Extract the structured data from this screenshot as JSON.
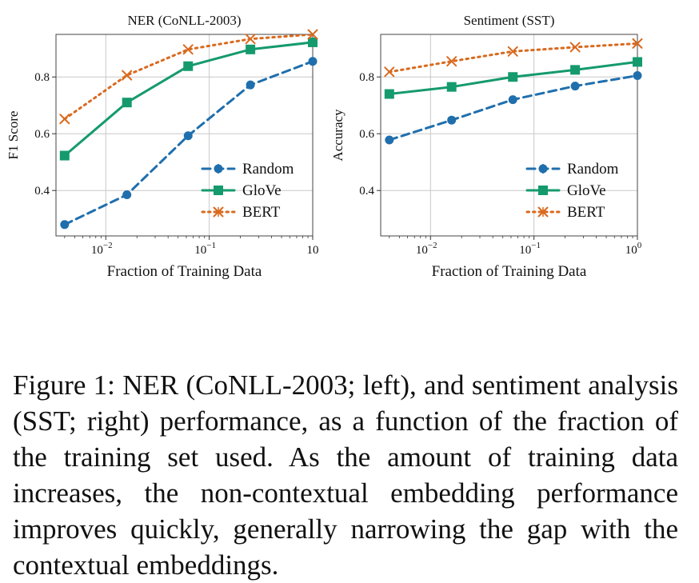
{
  "chart_data": [
    {
      "type": "line",
      "title": "NER (CoNLL-2003)",
      "xlabel": "Fraction of Training Data",
      "ylabel": "F1 Score",
      "x_scale": "log",
      "x": [
        0.004,
        0.016,
        0.0625,
        0.25,
        1.0
      ],
      "x_ticks": [
        {
          "value": 0.01,
          "base": "10",
          "exp": "−2"
        },
        {
          "value": 0.1,
          "base": "10",
          "exp": "−1"
        },
        {
          "value": 1.0,
          "base": "10",
          "exp": ""
        }
      ],
      "xlim": [
        0.0033,
        1.0
      ],
      "y_ticks": [
        "0.4",
        "0.6",
        "0.8"
      ],
      "ylim": [
        0.24,
        0.95
      ],
      "grid": true,
      "legend": "lower-right",
      "series": [
        {
          "name": "Random",
          "color": "#1f6fad",
          "dash": "dashed",
          "marker": "circle",
          "values": [
            0.28,
            0.385,
            0.593,
            0.772,
            0.855
          ]
        },
        {
          "name": "GloVe",
          "color": "#159a6e",
          "dash": "solid",
          "marker": "square",
          "values": [
            0.523,
            0.71,
            0.838,
            0.897,
            0.922
          ]
        },
        {
          "name": "BERT",
          "color": "#d96a1f",
          "dash": "dotted",
          "marker": "x",
          "values": [
            0.652,
            0.806,
            0.897,
            0.934,
            0.95
          ]
        }
      ]
    },
    {
      "type": "line",
      "title": "Sentiment (SST)",
      "xlabel": "Fraction of Training Data",
      "ylabel": "Accuracy",
      "x_scale": "log",
      "x": [
        0.004,
        0.016,
        0.0625,
        0.25,
        1.0
      ],
      "x_ticks": [
        {
          "value": 0.01,
          "base": "10",
          "exp": "−2"
        },
        {
          "value": 0.1,
          "base": "10",
          "exp": "−1"
        },
        {
          "value": 1.0,
          "base": "10",
          "exp": "0"
        }
      ],
      "xlim": [
        0.0033,
        1.0
      ],
      "y_ticks": [
        "0.4",
        "0.6",
        "0.8"
      ],
      "ylim": [
        0.24,
        0.95
      ],
      "grid": true,
      "legend": "lower-right",
      "series": [
        {
          "name": "Random",
          "color": "#1f6fad",
          "dash": "dashed",
          "marker": "circle",
          "values": [
            0.578,
            0.648,
            0.72,
            0.768,
            0.805
          ]
        },
        {
          "name": "GloVe",
          "color": "#159a6e",
          "dash": "solid",
          "marker": "square",
          "values": [
            0.74,
            0.765,
            0.8,
            0.825,
            0.853
          ]
        },
        {
          "name": "BERT",
          "color": "#d96a1f",
          "dash": "dotted",
          "marker": "x",
          "values": [
            0.818,
            0.855,
            0.89,
            0.905,
            0.918
          ]
        }
      ]
    }
  ],
  "caption": "Figure 1:  NER (CoNLL-2003; left), and sentiment analysis (SST; right) performance, as a function of the fraction of the training set used. As the amount of train­ing data increases, the non-contextual embedding per­formance improves quickly, generally narrowing the gap with the contextual embeddings."
}
